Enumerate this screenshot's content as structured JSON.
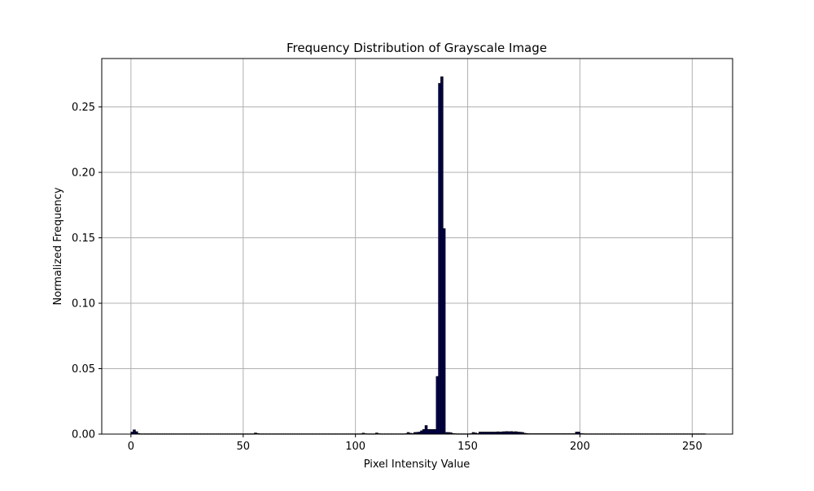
{
  "chart_data": {
    "type": "bar",
    "title": "Frequency Distribution of Grayscale Image",
    "xlabel": "Pixel Intensity Value",
    "ylabel": "Normalized Frequency",
    "xlim": [
      -13,
      268
    ],
    "ylim": [
      0,
      0.287
    ],
    "xticks": [
      0,
      50,
      100,
      150,
      200,
      250
    ],
    "xtick_labels": [
      "0",
      "50",
      "100",
      "150",
      "200",
      "250"
    ],
    "yticks": [
      0,
      0.05,
      0.1,
      0.15,
      0.2,
      0.25
    ],
    "ytick_labels": [
      "0.00",
      "0.05",
      "0.10",
      "0.15",
      "0.20",
      "0.25"
    ],
    "grid": true,
    "bar_color": "#00005a",
    "edge_color": "#000000",
    "bin_width": 1,
    "bin_start": 0,
    "values": [
      0.0015,
      0.0032,
      0.0018,
      0.0004,
      0.0002,
      0.0002,
      0.0002,
      0.0002,
      0.0002,
      0.0002,
      0.0002,
      0.0002,
      0.0002,
      0.0002,
      0.0002,
      0.0002,
      0.0002,
      0.0002,
      0.0002,
      0.0002,
      0.0002,
      0.0002,
      0.0002,
      0.0002,
      0.0002,
      0.0002,
      0.0002,
      0.0002,
      0.0002,
      0.0002,
      0.0002,
      0.0002,
      0.0002,
      0.0002,
      0.0002,
      0.0002,
      0.0002,
      0.0002,
      0.0002,
      0.0002,
      0.0002,
      0.0002,
      0.0002,
      0.0002,
      0.0002,
      0.0002,
      0.0002,
      0.0002,
      0.0002,
      0.0002,
      0.0002,
      0.0002,
      0.0002,
      0.0002,
      0.0002,
      0.0008,
      0.0004,
      0.0002,
      0.0002,
      0.0002,
      0.0002,
      0.0002,
      0.0002,
      0.0002,
      0.0002,
      0.0002,
      0.0002,
      0.0002,
      0.0002,
      0.0002,
      0.0002,
      0.0002,
      0.0002,
      0.0002,
      0.0002,
      0.0002,
      0.0002,
      0.0002,
      0.0002,
      0.0002,
      0.0002,
      0.0002,
      0.0002,
      0.0002,
      0.0002,
      0.0002,
      0.0002,
      0.0002,
      0.0002,
      0.0002,
      0.0002,
      0.0002,
      0.0002,
      0.0002,
      0.0002,
      0.0002,
      0.0002,
      0.0002,
      0.0002,
      0.0002,
      0.0002,
      0.0002,
      0.0002,
      0.0007,
      0.0003,
      0.0002,
      0.0002,
      0.0002,
      0.0002,
      0.0008,
      0.0003,
      0.0002,
      0.0002,
      0.0002,
      0.0002,
      0.0002,
      0.0002,
      0.0002,
      0.0002,
      0.0002,
      0.0002,
      0.0002,
      0.0003,
      0.0012,
      0.0006,
      0.0004,
      0.0012,
      0.0013,
      0.0015,
      0.0025,
      0.0035,
      0.0065,
      0.0035,
      0.0035,
      0.0035,
      0.0035,
      0.044,
      0.268,
      0.273,
      0.157,
      0.0012,
      0.0012,
      0.001,
      0.0004,
      0.0003,
      0.0002,
      0.0002,
      0.0002,
      0.0002,
      0.0002,
      0.0002,
      0.0003,
      0.0012,
      0.0008,
      0.0004,
      0.0015,
      0.0015,
      0.0015,
      0.0015,
      0.0015,
      0.0015,
      0.0015,
      0.0015,
      0.0017,
      0.0015,
      0.0017,
      0.0018,
      0.0019,
      0.0018,
      0.0019,
      0.0017,
      0.0018,
      0.0015,
      0.0014,
      0.0012,
      0.0006,
      0.0004,
      0.0003,
      0.0003,
      0.0003,
      0.0003,
      0.0003,
      0.0003,
      0.0003,
      0.0003,
      0.0003,
      0.0003,
      0.0003,
      0.0003,
      0.0003,
      0.0003,
      0.0003,
      0.0003,
      0.0003,
      0.0003,
      0.0003,
      0.0003,
      0.0003,
      0.0015,
      0.0015,
      0.0004,
      0.0003,
      0.0002,
      0.0002,
      0.0002,
      0.0002,
      0.0002,
      0.0002,
      0.0002,
      0.0002,
      0.0002,
      0.0002,
      0.0002,
      0.0002,
      0.0002,
      0.0002,
      0.0002,
      0.0002,
      0.0002,
      0.0002,
      0.0002,
      0.0002,
      0.0002,
      0.0002,
      0.0002,
      0.0002,
      0.0002,
      0.0002,
      0.0002,
      0.0002,
      0.0002,
      0.0002,
      0.0002,
      0.0002,
      0.0002,
      0.0002,
      0.0002,
      0.0002,
      0.0002,
      0.0002,
      0.0002,
      0.0002,
      0.0002,
      0.0002,
      0.0002,
      0.0002,
      0.0002,
      0.0002,
      0.0002,
      0.0002,
      0.0002,
      0.0002,
      0.0002,
      0.0002,
      0.0002,
      0.0002
    ]
  }
}
